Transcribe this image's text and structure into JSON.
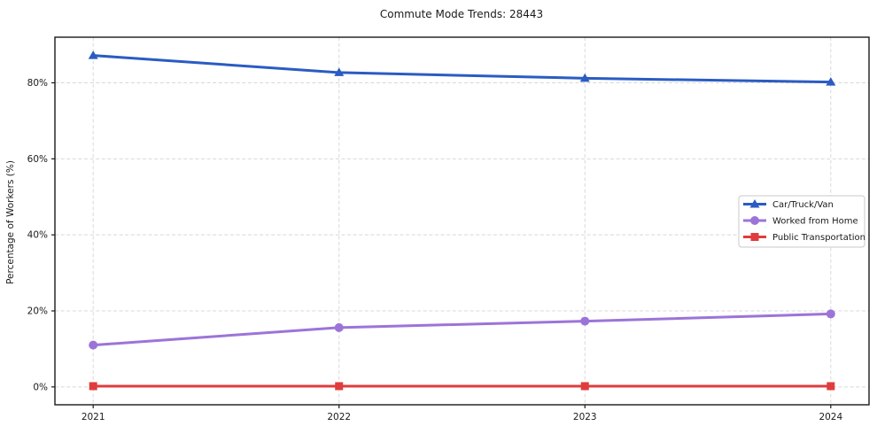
{
  "title": "Commute Mode Trends: 28443",
  "chart_data": {
    "type": "line",
    "title": "Commute Mode Trends: 28443",
    "xlabel": "",
    "ylabel": "Percentage of Workers (%)",
    "x_categories": [
      "2021",
      "2022",
      "2023",
      "2024"
    ],
    "y_ticks": [
      0,
      20,
      40,
      60,
      80
    ],
    "y_tick_labels": [
      "0%",
      "20%",
      "40%",
      "60%",
      "80%"
    ],
    "ylim": [
      -4.7,
      92
    ],
    "x_margin_frac": 0.047,
    "grid": true,
    "grid_style": "dashed",
    "legend_position": "center-right",
    "series": [
      {
        "name": "Car/Truck/Van",
        "color": "#2a5cc2",
        "marker": "triangle",
        "values": [
          87.2,
          82.7,
          81.2,
          80.2
        ]
      },
      {
        "name": "Worked from Home",
        "color": "#9c74d8",
        "marker": "circle",
        "values": [
          11.0,
          15.6,
          17.3,
          19.2
        ]
      },
      {
        "name": "Public Transportation",
        "color": "#e03c3c",
        "marker": "square",
        "values": [
          0.2,
          0.2,
          0.2,
          0.2
        ]
      }
    ]
  }
}
